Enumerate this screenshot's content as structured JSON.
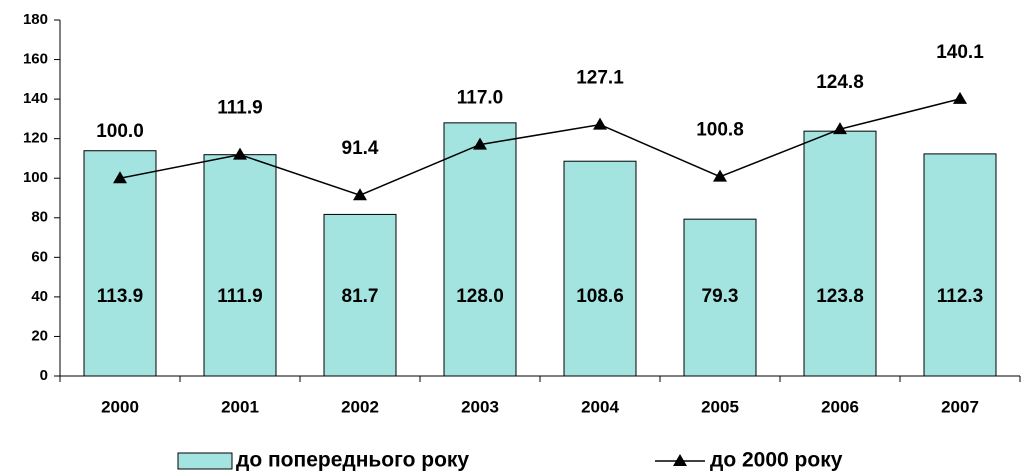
{
  "chart_data": {
    "type": "bar",
    "categories": [
      "2000",
      "2001",
      "2002",
      "2003",
      "2004",
      "2005",
      "2006",
      "2007"
    ],
    "series": [
      {
        "name": "до попереднього року",
        "type": "bar",
        "color": "#a3e3e0",
        "values": [
          113.9,
          111.9,
          81.7,
          128.0,
          108.6,
          79.3,
          123.8,
          112.3
        ],
        "value_labels": [
          "113.9",
          "111.9",
          "81.7",
          "128.0",
          "108.6",
          "79.3",
          "123.8",
          "112.3"
        ]
      },
      {
        "name": "до 2000 року",
        "type": "line",
        "color": "#000000",
        "values": [
          100.0,
          111.9,
          91.4,
          117.0,
          127.1,
          100.8,
          124.8,
          140.1
        ],
        "value_labels": [
          "100.0",
          "111.9",
          "91.4",
          "117.0",
          "127.1",
          "100.8",
          "124.8",
          "140.1"
        ]
      }
    ],
    "ylim": [
      0,
      180
    ],
    "yticks": [
      0,
      20,
      40,
      60,
      80,
      100,
      120,
      140,
      160,
      180
    ],
    "grid": false
  }
}
